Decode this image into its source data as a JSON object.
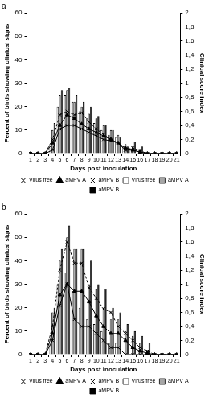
{
  "chart_data": [
    {
      "type": "bar",
      "title": "a",
      "x_label": "Days post inoculation",
      "y_label": "Percent of birds showing clinical signs",
      "y2_label": "Clinical score index",
      "categories": [
        "1",
        "2",
        "3",
        "4",
        "5",
        "6",
        "7",
        "8",
        "9",
        "10",
        "11",
        "12",
        "13",
        "14",
        "15",
        "16",
        "17",
        "18",
        "19",
        "20",
        "21"
      ],
      "ylim": [
        0,
        60
      ],
      "yticks": [
        0,
        10,
        20,
        30,
        40,
        50,
        60
      ],
      "y2lim": [
        0,
        2
      ],
      "y2ticks": [
        0,
        {
          "value": 0.2,
          "label": "0,2"
        },
        {
          "value": 0.4,
          "label": "0,4"
        },
        {
          "value": 0.6,
          "label": "0,6"
        },
        {
          "value": 0.8,
          "label": "0,8"
        },
        1,
        {
          "value": 1.2,
          "label": "1,2"
        },
        {
          "value": 1.4,
          "label": "1,4"
        },
        {
          "value": 1.6,
          "label": "1,6"
        },
        {
          "value": 1.8,
          "label": "1,8"
        },
        2
      ],
      "grid": false,
      "legend": "bottom",
      "series": [
        {
          "name": "Virus free",
          "type": "bar",
          "color": "#ffffff",
          "values": [
            0,
            0,
            0,
            3,
            20,
            25,
            22,
            18,
            15,
            13,
            10,
            8,
            7,
            3,
            2,
            0,
            0,
            0,
            0,
            0,
            0
          ]
        },
        {
          "name": "aMPV A",
          "type": "bar",
          "color": "#a6a6a6",
          "values": [
            0,
            0,
            0,
            10,
            25,
            27,
            22,
            20,
            17,
            15,
            12,
            10,
            8,
            4,
            3,
            2,
            0,
            0,
            0,
            0,
            0
          ]
        },
        {
          "name": "aMPV B",
          "type": "bar",
          "color": "#000000",
          "values": [
            0,
            0,
            0,
            13,
            27,
            28,
            25,
            22,
            20,
            16,
            12,
            10,
            7,
            3,
            5,
            3,
            0,
            0,
            0,
            0,
            0
          ]
        },
        {
          "name": "Virus free",
          "type": "line",
          "axis": "y2",
          "color": "#000000",
          "marker": "cross",
          "line_style": "solid",
          "values": [
            0,
            0,
            0,
            0.05,
            0.35,
            0.4,
            0.4,
            0.35,
            0.3,
            0.25,
            0.2,
            0.18,
            0.15,
            0.05,
            0.05,
            0.02,
            0,
            0,
            0,
            0,
            0
          ]
        },
        {
          "name": "aMPV A",
          "type": "line",
          "axis": "y2",
          "color": "#000000",
          "marker": "triangle",
          "line_style": "solid",
          "values": [
            0,
            0,
            0,
            0.15,
            0.4,
            0.55,
            0.5,
            0.42,
            0.35,
            0.3,
            0.25,
            0.2,
            0.15,
            0.08,
            0.05,
            0.02,
            0,
            0,
            0,
            0,
            0
          ]
        },
        {
          "name": "aMPV B",
          "type": "line",
          "axis": "y2",
          "color": "#000000",
          "marker": "cross",
          "line_style": "dashed",
          "values": [
            0,
            0,
            0,
            0.2,
            0.55,
            0.6,
            0.55,
            0.58,
            0.45,
            0.35,
            0.27,
            0.2,
            0.15,
            0.05,
            0.08,
            0.04,
            0,
            0,
            0,
            0,
            0
          ]
        }
      ]
    },
    {
      "type": "bar",
      "title": "b",
      "x_label": "Days post inoculation",
      "y_label": "Percent of birds showing clinical signs",
      "y2_label": "Clinical score index",
      "categories": [
        "1",
        "2",
        "3",
        "4",
        "5",
        "6",
        "7",
        "8",
        "9",
        "10",
        "11",
        "12",
        "13",
        "14",
        "15",
        "16",
        "17",
        "18",
        "19",
        "20",
        "21"
      ],
      "ylim": [
        0,
        60
      ],
      "yticks": [
        0,
        10,
        20,
        30,
        40,
        50,
        60
      ],
      "y2lim": [
        0,
        2
      ],
      "y2ticks": [
        0,
        {
          "value": 0.2,
          "label": "0,2"
        },
        {
          "value": 0.4,
          "label": "0,4"
        },
        {
          "value": 0.6,
          "label": "0,6"
        },
        {
          "value": 0.8,
          "label": "0,8"
        },
        1,
        {
          "value": 1.2,
          "label": "1,2"
        },
        {
          "value": 1.4,
          "label": "1,4"
        },
        {
          "value": 1.6,
          "label": "1,6"
        },
        {
          "value": 1.8,
          "label": "1,8"
        },
        2
      ],
      "grid": false,
      "legend": "bottom",
      "series": [
        {
          "name": "Virus free",
          "type": "bar",
          "color": "#ffffff",
          "values": [
            0,
            0,
            0,
            5,
            30,
            35,
            27,
            20,
            15,
            13,
            10,
            5,
            5,
            0,
            0,
            0,
            0,
            0,
            0,
            0,
            0
          ]
        },
        {
          "name": "aMPV A",
          "type": "bar",
          "color": "#a6a6a6",
          "values": [
            0,
            0,
            0,
            18,
            40,
            50,
            45,
            45,
            30,
            28,
            20,
            15,
            15,
            10,
            8,
            5,
            2,
            0,
            0,
            0,
            0
          ]
        },
        {
          "name": "aMPV B",
          "type": "bar",
          "color": "#000000",
          "values": [
            0,
            0,
            0,
            20,
            45,
            55,
            45,
            45,
            40,
            30,
            28,
            20,
            18,
            13,
            10,
            8,
            5,
            0,
            0,
            0,
            0
          ]
        },
        {
          "name": "Virus free",
          "type": "line",
          "axis": "y2",
          "color": "#000000",
          "marker": "cross",
          "line_style": "solid",
          "values": [
            0,
            0,
            0,
            0.2,
            0.7,
            1.0,
            0.5,
            0.4,
            0.4,
            0.3,
            0.2,
            0.1,
            0.1,
            0,
            0,
            0,
            0,
            0,
            0,
            0,
            0
          ]
        },
        {
          "name": "aMPV A",
          "type": "line",
          "axis": "y2",
          "color": "#000000",
          "marker": "triangle",
          "line_style": "solid",
          "values": [
            0,
            0,
            0,
            0.3,
            0.85,
            1.0,
            0.9,
            0.9,
            0.75,
            0.55,
            0.4,
            0.3,
            0.3,
            0.2,
            0.1,
            0.05,
            0.02,
            0,
            0,
            0,
            0
          ]
        },
        {
          "name": "aMPV B",
          "type": "line",
          "axis": "y2",
          "color": "#000000",
          "marker": "cross",
          "line_style": "dashed",
          "values": [
            0,
            0,
            0,
            0.4,
            1.2,
            1.6,
            1.3,
            1.3,
            0.95,
            0.8,
            0.65,
            0.6,
            0.4,
            0.3,
            0.2,
            0.1,
            0.05,
            0,
            0,
            0,
            0
          ]
        }
      ]
    }
  ]
}
